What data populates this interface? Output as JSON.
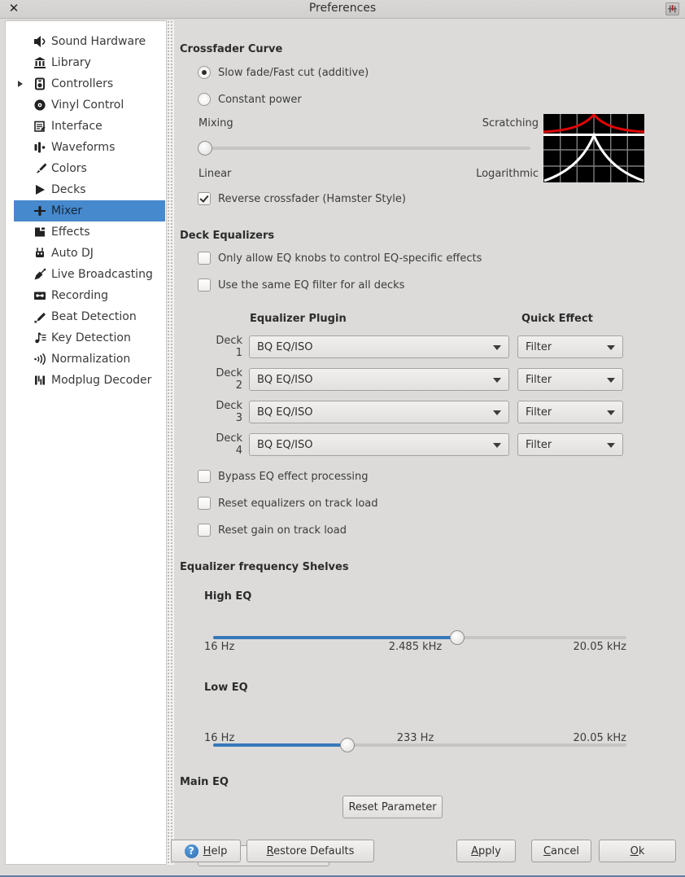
{
  "window": {
    "title": "Preferences",
    "close_glyph": "✕"
  },
  "colors": {
    "selection": "#4789cd",
    "slider_fill": "#3778ba",
    "graph_red": "#e30505",
    "graph_white": "#ffffff"
  },
  "sidebar": {
    "items": [
      {
        "label": "Sound Hardware",
        "icon": "speaker",
        "selected": false,
        "expandable": false
      },
      {
        "label": "Library",
        "icon": "library",
        "selected": false,
        "expandable": false
      },
      {
        "label": "Controllers",
        "icon": "controller",
        "selected": false,
        "expandable": true
      },
      {
        "label": "Vinyl Control",
        "icon": "vinyl",
        "selected": false,
        "expandable": false
      },
      {
        "label": "Interface",
        "icon": "interface",
        "selected": false,
        "expandable": false
      },
      {
        "label": "Waveforms",
        "icon": "waveform",
        "selected": false,
        "expandable": false
      },
      {
        "label": "Colors",
        "icon": "brush",
        "selected": false,
        "expandable": false
      },
      {
        "label": "Decks",
        "icon": "play",
        "selected": false,
        "expandable": false
      },
      {
        "label": "Mixer",
        "icon": "mixer",
        "selected": true,
        "expandable": false
      },
      {
        "label": "Effects",
        "icon": "effects",
        "selected": false,
        "expandable": false
      },
      {
        "label": "Auto DJ",
        "icon": "robot",
        "selected": false,
        "expandable": false
      },
      {
        "label": "Live Broadcasting",
        "icon": "satellite",
        "selected": false,
        "expandable": false
      },
      {
        "label": "Recording",
        "icon": "cassette",
        "selected": false,
        "expandable": false
      },
      {
        "label": "Beat Detection",
        "icon": "pencil",
        "selected": false,
        "expandable": false
      },
      {
        "label": "Key Detection",
        "icon": "music-key",
        "selected": false,
        "expandable": false
      },
      {
        "label": "Normalization",
        "icon": "soundwaves",
        "selected": false,
        "expandable": false
      },
      {
        "label": "Modplug Decoder",
        "icon": "modplug",
        "selected": false,
        "expandable": false
      }
    ]
  },
  "crossfader": {
    "heading": "Crossfader Curve",
    "options": [
      {
        "label": "Slow fade/Fast cut (additive)",
        "selected": true
      },
      {
        "label": "Constant power",
        "selected": false
      }
    ],
    "mixing_label": "Mixing",
    "scratching_label": "Scratching",
    "linear_label": "Linear",
    "logarithmic_label": "Logarithmic",
    "slider_percent": 2,
    "reverse": {
      "label": "Reverse crossfader (Hamster Style)",
      "checked": true
    }
  },
  "deck_eq": {
    "heading": "Deck Equalizers",
    "only_eq_knobs": {
      "label": "Only allow EQ knobs to control EQ-specific effects",
      "checked": false
    },
    "same_filter": {
      "label": "Use the same EQ filter for all decks",
      "checked": false
    },
    "table": {
      "col_plugin": "Equalizer Plugin",
      "col_quick": "Quick Effect",
      "rows": [
        {
          "deck": "Deck 1",
          "plugin": "BQ EQ/ISO",
          "quick": "Filter"
        },
        {
          "deck": "Deck 2",
          "plugin": "BQ EQ/ISO",
          "quick": "Filter"
        },
        {
          "deck": "Deck 3",
          "plugin": "BQ EQ/ISO",
          "quick": "Filter"
        },
        {
          "deck": "Deck 4",
          "plugin": "BQ EQ/ISO",
          "quick": "Filter"
        }
      ]
    },
    "bypass": {
      "label": "Bypass EQ effect processing",
      "checked": false
    },
    "reset_eq": {
      "label": "Reset equalizers on track load",
      "checked": false
    },
    "reset_gain": {
      "label": "Reset gain on track load",
      "checked": false
    }
  },
  "shelves": {
    "heading": "Equalizer frequency Shelves",
    "high": {
      "label": "High EQ",
      "min": "16 Hz",
      "value": "2.485 kHz",
      "max": "20.05 kHz",
      "percent": 59
    },
    "low": {
      "label": "Low EQ",
      "min": "16 Hz",
      "value": "233 Hz",
      "max": "20.05 kHz",
      "percent": 32.5
    }
  },
  "main_eq": {
    "heading": "Main EQ",
    "selected": "---",
    "reset_button": "Reset Parameter"
  },
  "footer": {
    "help": "Help",
    "restore": "Restore Defaults",
    "apply": "Apply",
    "cancel": "Cancel",
    "ok": "Ok"
  }
}
